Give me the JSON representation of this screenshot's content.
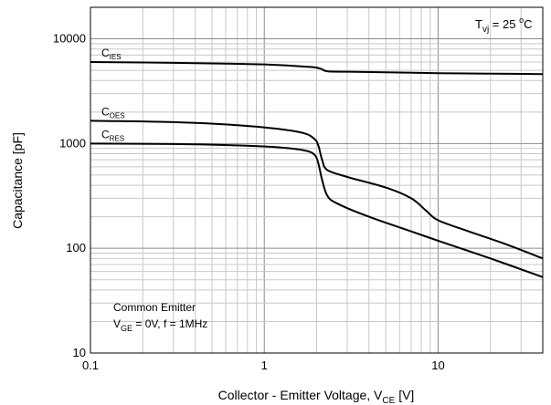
{
  "chart_data": {
    "type": "line",
    "xlabel": "Collector - Emitter Voltage, V",
    "xlabel_sub": "CE",
    "xlabel_unit": " [V]",
    "ylabel": "Capacitance [pF]",
    "x_scale": "log",
    "y_scale": "log",
    "xlim": [
      0.1,
      40
    ],
    "ylim": [
      10,
      20000
    ],
    "x_ticks": [
      {
        "value": 0.1,
        "label": "0.1"
      },
      {
        "value": 1,
        "label": "1"
      },
      {
        "value": 10,
        "label": "10"
      }
    ],
    "y_ticks": [
      {
        "value": 10,
        "label": "10"
      },
      {
        "value": 100,
        "label": "100"
      },
      {
        "value": 1000,
        "label": "1000"
      },
      {
        "value": 10000,
        "label": "10000"
      }
    ],
    "grid": true,
    "condition": {
      "prefix": "T",
      "sub": "vj",
      "text": " = 25 ",
      "sup": "o",
      "suffix": "C"
    },
    "annotation": {
      "line1": "Common Emitter",
      "line2_prefix": "V",
      "line2_sub": "GE",
      "line2_text": " = 0V, f  = 1MHz"
    },
    "series": [
      {
        "name": "C",
        "sub": "IES",
        "color": "#000000",
        "points": [
          [
            0.1,
            6000
          ],
          [
            0.3,
            5900
          ],
          [
            1,
            5700
          ],
          [
            1.8,
            5400
          ],
          [
            2.1,
            5200
          ],
          [
            2.3,
            4900
          ],
          [
            3,
            4850
          ],
          [
            5,
            4800
          ],
          [
            10,
            4700
          ],
          [
            20,
            4650
          ],
          [
            40,
            4600
          ]
        ]
      },
      {
        "name": "C",
        "sub": "OES",
        "color": "#000000",
        "points": [
          [
            0.1,
            1650
          ],
          [
            0.3,
            1600
          ],
          [
            0.7,
            1500
          ],
          [
            1.2,
            1380
          ],
          [
            1.7,
            1250
          ],
          [
            1.95,
            1100
          ],
          [
            2.05,
            950
          ],
          [
            2.15,
            700
          ],
          [
            2.3,
            560
          ],
          [
            3,
            480
          ],
          [
            5,
            380
          ],
          [
            7,
            300
          ],
          [
            8.5,
            230
          ],
          [
            10,
            185
          ],
          [
            15,
            145
          ],
          [
            25,
            108
          ],
          [
            40,
            80
          ]
        ]
      },
      {
        "name": "C",
        "sub": "RES",
        "color": "#000000",
        "points": [
          [
            0.1,
            1000
          ],
          [
            0.3,
            990
          ],
          [
            0.7,
            960
          ],
          [
            1.2,
            920
          ],
          [
            1.7,
            860
          ],
          [
            1.95,
            780
          ],
          [
            2.05,
            640
          ],
          [
            2.15,
            450
          ],
          [
            2.3,
            320
          ],
          [
            2.6,
            270
          ],
          [
            4,
            200
          ],
          [
            7,
            145
          ],
          [
            10,
            118
          ],
          [
            20,
            80
          ],
          [
            40,
            53
          ]
        ]
      }
    ]
  }
}
